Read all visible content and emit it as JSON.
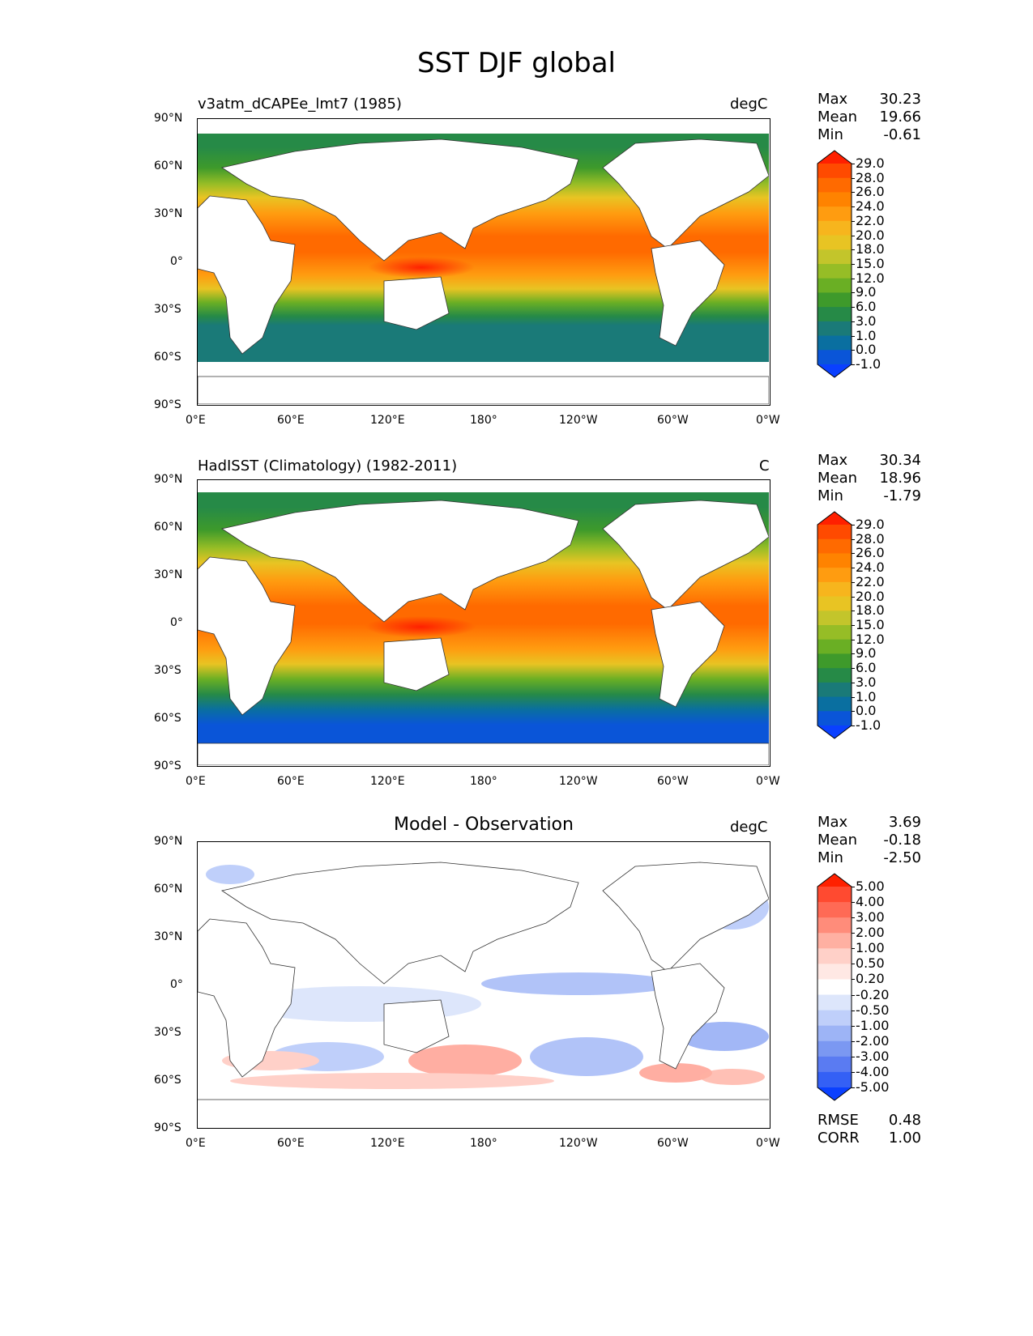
{
  "page": {
    "title": "SST DJF global"
  },
  "axes": {
    "lat_labels": [
      "90°N",
      "60°N",
      "30°N",
      "0°",
      "30°S",
      "60°S",
      "90°S"
    ],
    "lon_labels": [
      "0°E",
      "60°E",
      "120°E",
      "180°",
      "120°W",
      "60°W",
      "0°W"
    ]
  },
  "panels": [
    {
      "left_label": "v3atm_dCAPEe_lmt7 (1985)",
      "right_label": "degC",
      "stats": {
        "max_label": "Max",
        "max": "30.23",
        "mean_label": "Mean",
        "mean": "19.66",
        "min_label": "Min",
        "min": "-0.61"
      },
      "colorbar": {
        "levels": [
          "29.0",
          "28.0",
          "26.0",
          "24.0",
          "22.0",
          "20.0",
          "18.0",
          "15.0",
          "12.0",
          "9.0",
          "6.0",
          "3.0",
          "1.0",
          "0.0",
          "-1.0"
        ],
        "colors": [
          "#ff2000",
          "#ff4a00",
          "#ff6a00",
          "#ff8300",
          "#ff9c10",
          "#f7b51d",
          "#e8c423",
          "#c3c52b",
          "#96bd26",
          "#6aaf24",
          "#3e9a2b",
          "#268a47",
          "#1a7a78",
          "#0a6fa0",
          "#0a55d8",
          "#0a40ff"
        ]
      }
    },
    {
      "left_label": "HadISST (Climatology) (1982-2011)",
      "right_label": "C",
      "stats": {
        "max_label": "Max",
        "max": "30.34",
        "mean_label": "Mean",
        "mean": "18.96",
        "min_label": "Min",
        "min": "-1.79"
      },
      "colorbar": {
        "levels": [
          "29.0",
          "28.0",
          "26.0",
          "24.0",
          "22.0",
          "20.0",
          "18.0",
          "15.0",
          "12.0",
          "9.0",
          "6.0",
          "3.0",
          "1.0",
          "0.0",
          "-1.0"
        ],
        "colors": [
          "#ff2000",
          "#ff4a00",
          "#ff6a00",
          "#ff8300",
          "#ff9c10",
          "#f7b51d",
          "#e8c423",
          "#c3c52b",
          "#96bd26",
          "#6aaf24",
          "#3e9a2b",
          "#268a47",
          "#1a7a78",
          "#0a6fa0",
          "#0a55d8",
          "#0a40ff"
        ]
      }
    },
    {
      "center_title": "Model - Observation",
      "right_label": "degC",
      "stats": {
        "max_label": "Max",
        "max": "3.69",
        "mean_label": "Mean",
        "mean": "-0.18",
        "min_label": "Min",
        "min": "-2.50"
      },
      "extra_stats": {
        "rmse_label": "RMSE",
        "rmse": "0.48",
        "corr_label": "CORR",
        "corr": "1.00"
      },
      "colorbar": {
        "levels": [
          "5.00",
          "4.00",
          "3.00",
          "2.00",
          "1.00",
          "0.50",
          "0.20",
          "-0.20",
          "-0.50",
          "-1.00",
          "-2.00",
          "-3.00",
          "-4.00",
          "-5.00"
        ],
        "colors": [
          "#ff2000",
          "#ff4a30",
          "#ff6a55",
          "#ff8c7a",
          "#ffb0a2",
          "#ffd0c8",
          "#ffe8e4",
          "#ffffff",
          "#dde6fb",
          "#bfcffa",
          "#9db4f6",
          "#7b98f2",
          "#5a7bf2",
          "#3460f5",
          "#0a40ff"
        ]
      }
    }
  ]
}
